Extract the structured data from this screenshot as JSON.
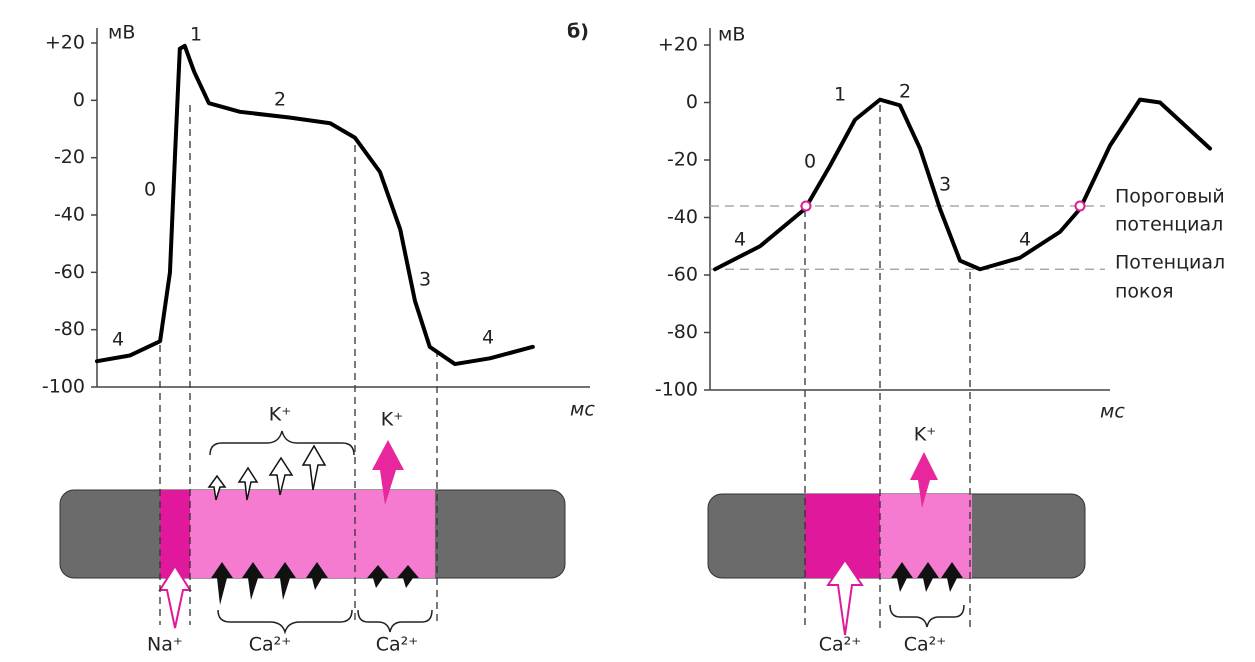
{
  "chart_data": [
    {
      "type": "line",
      "ylabel": "мВ",
      "xlabel": "мс",
      "color": "#000",
      "x": [
        0,
        6.7,
        12.8,
        14.8,
        15.8,
        16.8,
        17.8,
        19.7,
        22.7,
        29,
        39,
        47.3,
        52.3,
        57.4,
        61.5,
        64.5,
        67.5,
        72.6,
        79.7,
        88.4
      ],
      "values": [
        -91,
        -89,
        -84,
        -60,
        -20,
        18,
        19,
        10,
        -1,
        -4,
        -6,
        -8,
        -13,
        -25,
        -45,
        -70,
        -86,
        -92,
        -90,
        -86
      ],
      "xlim": [
        0,
        100
      ],
      "ylim": [
        -100,
        20
      ],
      "yticks": [
        {
          "value": 20,
          "label": "+20"
        },
        0,
        -20,
        -40,
        -60,
        -80,
        -100
      ],
      "annotations": [
        "4",
        "0",
        "1",
        "2",
        "3",
        "4",
        "K⁺",
        "K⁺",
        "Na⁺",
        "Ca²⁺",
        "Ca²⁺"
      ]
    },
    {
      "type": "line",
      "ylabel": "мВ",
      "xlabel": "мс",
      "color": "#000",
      "x": [
        1,
        10,
        19,
        24,
        29,
        34,
        38,
        42,
        46,
        50,
        54,
        62,
        70,
        74,
        80,
        86,
        90,
        95,
        100
      ],
      "values": [
        -58,
        -50,
        -37,
        -22,
        -6,
        1,
        -1,
        -16,
        -37,
        -55,
        -58,
        -54,
        -45,
        -37,
        -15,
        1,
        0,
        -8,
        -16
      ],
      "xlim": [
        0,
        100
      ],
      "ylim": [
        -100,
        20
      ],
      "yticks": [
        {
          "value": 20,
          "label": "+20"
        },
        0,
        -20,
        -40,
        -60,
        -80,
        -100
      ],
      "threshold": -36,
      "rest": -58,
      "annotations": [
        "б)",
        "0",
        "1",
        "2",
        "3",
        "4",
        "4",
        "Пороговый",
        "потенциал",
        "Потенциал",
        "покоя",
        "K⁺",
        "Ca²⁺",
        "Ca²⁺"
      ]
    }
  ]
}
